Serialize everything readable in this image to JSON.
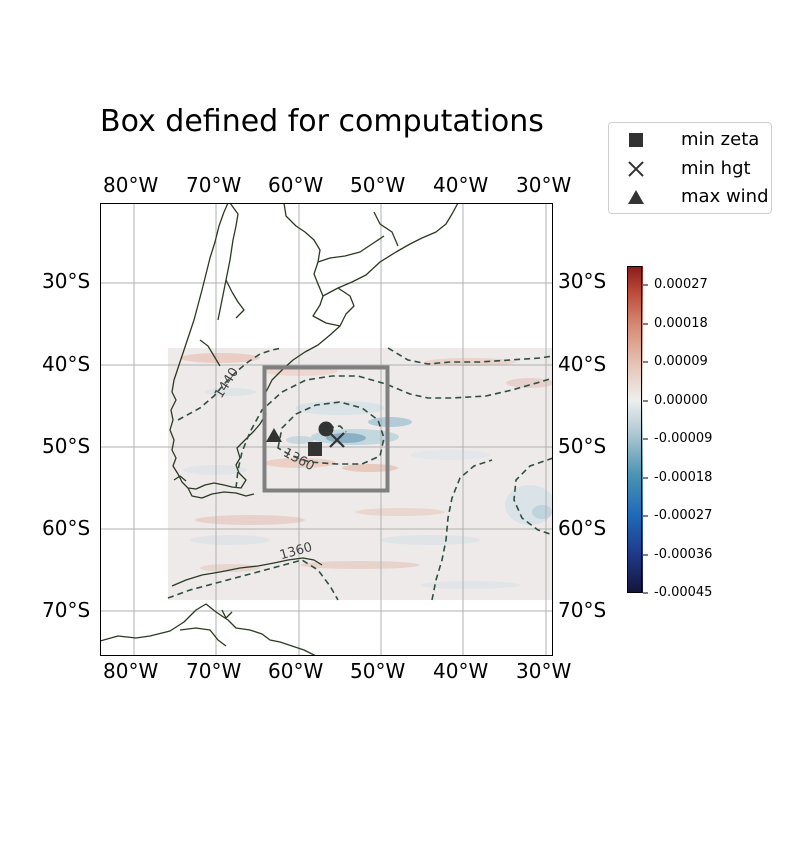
{
  "title": "Box defined for computations",
  "map": {
    "extent": {
      "lon": [
        -84,
        -29
      ],
      "lat": [
        -75.5,
        -20.3
      ]
    },
    "lon_ticks": [
      {
        "value": -80,
        "label": "80°W"
      },
      {
        "value": -70,
        "label": "70°W"
      },
      {
        "value": -60,
        "label": "60°W"
      },
      {
        "value": -50,
        "label": "50°W"
      },
      {
        "value": -40,
        "label": "40°W"
      },
      {
        "value": -30,
        "label": "30°W"
      }
    ],
    "lat_ticks": [
      {
        "value": -30,
        "label": "30°S"
      },
      {
        "value": -40,
        "label": "40°S"
      },
      {
        "value": -50,
        "label": "50°S"
      },
      {
        "value": -60,
        "label": "60°S"
      },
      {
        "value": -70,
        "label": "70°S"
      }
    ],
    "gridlines": true,
    "field_domain": {
      "lon": [
        -75.8,
        -29
      ],
      "lat": [
        -68.5,
        -37.9
      ]
    },
    "computation_box": {
      "lon": [
        -64,
        -49
      ],
      "lat": [
        -55,
        -40.5
      ]
    },
    "contour_labels": [
      {
        "text": "1440",
        "lon": -72.2,
        "lat": -42.5
      },
      {
        "text": "1360",
        "lon": -60.1,
        "lat": -63
      },
      {
        "text": "1360",
        "lon": -60.2,
        "lat": -51.3
      }
    ],
    "markers": [
      {
        "kind": "max wind",
        "symbol": "triangle",
        "lon": -63.2,
        "lat": -48.6
      },
      {
        "kind": "min zeta",
        "symbol": "square",
        "lon": -58,
        "lat": -50.4
      },
      {
        "kind": "min hgt",
        "symbol": "cross",
        "lon": -54.5,
        "lat": -49.3
      },
      {
        "kind": "center",
        "symbol": "circle",
        "lon": -56.5,
        "lat": -47.9
      }
    ]
  },
  "legend": {
    "placement": "top-right, outside axes",
    "items": [
      {
        "label": "min zeta",
        "symbol": "square"
      },
      {
        "label": "min hgt",
        "symbol": "cross"
      },
      {
        "label": "max wind",
        "symbol": "triangle"
      }
    ]
  },
  "colorbar": {
    "range": [
      -0.00045,
      0.00031
    ],
    "colormap": "navy-blue-white-red",
    "ticks": [
      "0.00027",
      "0.00018",
      "0.00009",
      "0.00000",
      "-0.00009",
      "-0.00018",
      "-0.00027",
      "-0.00036",
      "-0.00045"
    ],
    "tick_values": [
      0.00027,
      0.00018,
      9e-05,
      0.0,
      -9e-05,
      -0.00018,
      -0.00027,
      -0.00036,
      -0.00045
    ]
  },
  "colors": {
    "coast": "#2b3a22",
    "contour": "#2f4f3f",
    "box": "#808080",
    "marker": "#333333",
    "grid": "#b0b0b0"
  }
}
